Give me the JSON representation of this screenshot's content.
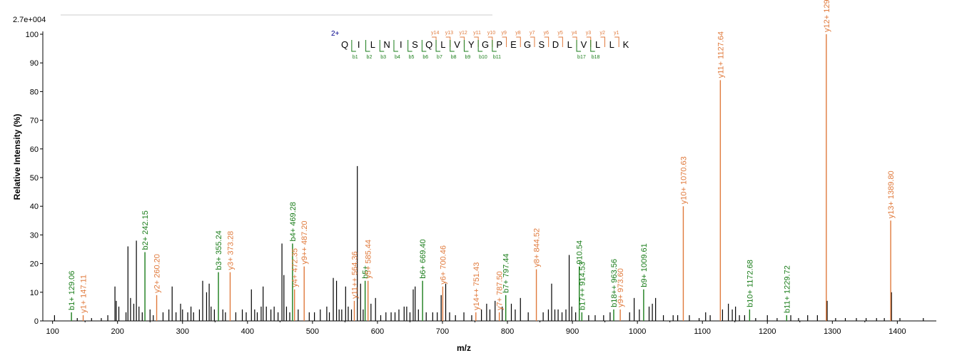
{
  "chart_data": {
    "type": "bar",
    "title": "",
    "scale_label": "2.7e+004",
    "xlabel": "m/z",
    "ylabel": "Relative   Intensity (%)",
    "xlim": [
      85,
      1460
    ],
    "ylim": [
      0,
      100
    ],
    "x_ticks": [
      100,
      200,
      300,
      400,
      500,
      600,
      700,
      800,
      900,
      1000,
      1100,
      1200,
      1300,
      1400
    ],
    "y_ticks": [
      0,
      10,
      20,
      30,
      40,
      50,
      60,
      70,
      80,
      90,
      100
    ],
    "grid": false,
    "colors": {
      "b_ion": "#1a7d1a",
      "y_ion": "#e07a3c",
      "other": "#000000",
      "charge": "#00008b"
    },
    "annotated_peaks": [
      {
        "label": "b1+ 129.06",
        "mz": 129.06,
        "intensity": 3,
        "ion": "b"
      },
      {
        "label": "y1+ 147.11",
        "mz": 147.11,
        "intensity": 2,
        "ion": "y"
      },
      {
        "label": "b2+ 242.15",
        "mz": 242.15,
        "intensity": 24,
        "ion": "b"
      },
      {
        "label": "y2+ 260.20",
        "mz": 260.2,
        "intensity": 9,
        "ion": "y"
      },
      {
        "label": "b3+ 355.24",
        "mz": 355.24,
        "intensity": 17,
        "ion": "b"
      },
      {
        "label": "y3+ 373.28",
        "mz": 373.28,
        "intensity": 17,
        "ion": "y"
      },
      {
        "label": "b4+ 469.28",
        "mz": 469.28,
        "intensity": 27,
        "ion": "b"
      },
      {
        "label": "y4+ 472.35",
        "mz": 472.35,
        "intensity": 11,
        "ion": "y"
      },
      {
        "label": "y9++ 487.20",
        "mz": 487.2,
        "intensity": 19,
        "ion": "y"
      },
      {
        "label": "y11++ 564.36",
        "mz": 564.36,
        "intensity": 7,
        "ion": "y"
      },
      {
        "label": "b5+",
        "mz": 581.0,
        "intensity": 14,
        "ion": "b"
      },
      {
        "label": "y5+ 585.44",
        "mz": 585.44,
        "intensity": 14,
        "ion": "y"
      },
      {
        "label": "b6+ 669.40",
        "mz": 669.4,
        "intensity": 14,
        "ion": "b"
      },
      {
        "label": "y6+ 700.46",
        "mz": 700.46,
        "intensity": 12,
        "ion": "y"
      },
      {
        "label": "y14++ 751.43",
        "mz": 751.43,
        "intensity": 3,
        "ion": "y"
      },
      {
        "label": "y7+ 787.50",
        "mz": 787.5,
        "intensity": 3,
        "ion": "y"
      },
      {
        "label": "b7+ 797.44",
        "mz": 797.44,
        "intensity": 9,
        "ion": "b"
      },
      {
        "label": "y8+ 844.52",
        "mz": 844.52,
        "intensity": 18,
        "ion": "y"
      },
      {
        "label": "b17++ 914.53",
        "mz": 914.53,
        "intensity": 3,
        "ion": "b"
      },
      {
        "label": "910.54",
        "mz": 910.54,
        "intensity": 19,
        "ion": "b"
      },
      {
        "label": "b18++ 963.56",
        "mz": 963.56,
        "intensity": 4,
        "ion": "b"
      },
      {
        "label": "y9+ 973.60",
        "mz": 973.6,
        "intensity": 4,
        "ion": "y"
      },
      {
        "label": "b9+ 1009.61",
        "mz": 1009.61,
        "intensity": 11,
        "ion": "b"
      },
      {
        "label": "y10+ 1070.63",
        "mz": 1070.63,
        "intensity": 40,
        "ion": "y"
      },
      {
        "label": "y11+ 1127.64",
        "mz": 1127.64,
        "intensity": 84,
        "ion": "y"
      },
      {
        "label": "b10+ 1172.68",
        "mz": 1172.68,
        "intensity": 4,
        "ion": "b"
      },
      {
        "label": "b11+ 1229.72",
        "mz": 1229.72,
        "intensity": 2,
        "ion": "b"
      },
      {
        "label": "y12+ 1290.70",
        "mz": 1290.7,
        "intensity": 100,
        "ion": "y"
      },
      {
        "label": "y13+ 1389.80",
        "mz": 1389.8,
        "intensity": 35,
        "ion": "y"
      }
    ],
    "other_peaks": [
      {
        "mz": 103,
        "intensity": 2
      },
      {
        "mz": 138,
        "intensity": 1
      },
      {
        "mz": 160,
        "intensity": 1
      },
      {
        "mz": 175,
        "intensity": 1
      },
      {
        "mz": 185,
        "intensity": 2
      },
      {
        "mz": 196,
        "intensity": 12
      },
      {
        "mz": 198,
        "intensity": 7
      },
      {
        "mz": 202,
        "intensity": 5
      },
      {
        "mz": 213,
        "intensity": 3
      },
      {
        "mz": 216,
        "intensity": 26
      },
      {
        "mz": 220,
        "intensity": 8
      },
      {
        "mz": 225,
        "intensity": 6
      },
      {
        "mz": 229,
        "intensity": 28
      },
      {
        "mz": 233,
        "intensity": 5
      },
      {
        "mz": 238,
        "intensity": 3
      },
      {
        "mz": 250,
        "intensity": 4
      },
      {
        "mz": 255,
        "intensity": 2
      },
      {
        "mz": 270,
        "intensity": 3
      },
      {
        "mz": 279,
        "intensity": 4
      },
      {
        "mz": 284,
        "intensity": 12
      },
      {
        "mz": 290,
        "intensity": 3
      },
      {
        "mz": 297,
        "intensity": 6
      },
      {
        "mz": 300,
        "intensity": 4
      },
      {
        "mz": 308,
        "intensity": 3
      },
      {
        "mz": 313,
        "intensity": 5
      },
      {
        "mz": 317,
        "intensity": 3
      },
      {
        "mz": 326,
        "intensity": 4
      },
      {
        "mz": 331,
        "intensity": 14
      },
      {
        "mz": 337,
        "intensity": 10
      },
      {
        "mz": 341,
        "intensity": 13
      },
      {
        "mz": 344,
        "intensity": 5
      },
      {
        "mz": 349,
        "intensity": 4
      },
      {
        "mz": 362,
        "intensity": 4
      },
      {
        "mz": 366,
        "intensity": 3
      },
      {
        "mz": 382,
        "intensity": 3
      },
      {
        "mz": 392,
        "intensity": 4
      },
      {
        "mz": 398,
        "intensity": 3
      },
      {
        "mz": 406,
        "intensity": 11
      },
      {
        "mz": 411,
        "intensity": 4
      },
      {
        "mz": 415,
        "intensity": 3
      },
      {
        "mz": 421,
        "intensity": 5
      },
      {
        "mz": 424,
        "intensity": 12
      },
      {
        "mz": 429,
        "intensity": 5
      },
      {
        "mz": 436,
        "intensity": 4
      },
      {
        "mz": 441,
        "intensity": 5
      },
      {
        "mz": 447,
        "intensity": 3
      },
      {
        "mz": 453,
        "intensity": 27
      },
      {
        "mz": 456,
        "intensity": 16
      },
      {
        "mz": 460,
        "intensity": 5
      },
      {
        "mz": 465,
        "intensity": 3
      },
      {
        "mz": 478,
        "intensity": 4
      },
      {
        "mz": 495,
        "intensity": 3
      },
      {
        "mz": 503,
        "intensity": 3
      },
      {
        "mz": 512,
        "intensity": 4
      },
      {
        "mz": 522,
        "intensity": 5
      },
      {
        "mz": 526,
        "intensity": 3
      },
      {
        "mz": 532,
        "intensity": 15
      },
      {
        "mz": 537,
        "intensity": 14
      },
      {
        "mz": 541,
        "intensity": 4
      },
      {
        "mz": 545,
        "intensity": 4
      },
      {
        "mz": 551,
        "intensity": 12
      },
      {
        "mz": 555,
        "intensity": 5
      },
      {
        "mz": 560,
        "intensity": 4
      },
      {
        "mz": 569,
        "intensity": 54
      },
      {
        "mz": 574,
        "intensity": 13
      },
      {
        "mz": 578,
        "intensity": 4
      },
      {
        "mz": 590,
        "intensity": 6
      },
      {
        "mz": 597,
        "intensity": 8
      },
      {
        "mz": 605,
        "intensity": 2
      },
      {
        "mz": 613,
        "intensity": 3
      },
      {
        "mz": 621,
        "intensity": 3
      },
      {
        "mz": 627,
        "intensity": 3
      },
      {
        "mz": 633,
        "intensity": 4
      },
      {
        "mz": 641,
        "intensity": 5
      },
      {
        "mz": 645,
        "intensity": 5
      },
      {
        "mz": 650,
        "intensity": 3
      },
      {
        "mz": 655,
        "intensity": 11
      },
      {
        "mz": 658,
        "intensity": 12
      },
      {
        "mz": 663,
        "intensity": 4
      },
      {
        "mz": 675,
        "intensity": 3
      },
      {
        "mz": 685,
        "intensity": 3
      },
      {
        "mz": 692,
        "intensity": 3
      },
      {
        "mz": 698,
        "intensity": 9
      },
      {
        "mz": 705,
        "intensity": 13
      },
      {
        "mz": 711,
        "intensity": 3
      },
      {
        "mz": 720,
        "intensity": 2
      },
      {
        "mz": 733,
        "intensity": 3
      },
      {
        "mz": 745,
        "intensity": 2
      },
      {
        "mz": 760,
        "intensity": 4
      },
      {
        "mz": 768,
        "intensity": 6
      },
      {
        "mz": 773,
        "intensity": 4
      },
      {
        "mz": 781,
        "intensity": 7
      },
      {
        "mz": 792,
        "intensity": 5
      },
      {
        "mz": 806,
        "intensity": 6
      },
      {
        "mz": 812,
        "intensity": 4
      },
      {
        "mz": 820,
        "intensity": 8
      },
      {
        "mz": 832,
        "intensity": 3
      },
      {
        "mz": 855,
        "intensity": 3
      },
      {
        "mz": 863,
        "intensity": 4
      },
      {
        "mz": 868,
        "intensity": 13
      },
      {
        "mz": 873,
        "intensity": 4
      },
      {
        "mz": 878,
        "intensity": 4
      },
      {
        "mz": 884,
        "intensity": 3
      },
      {
        "mz": 890,
        "intensity": 4
      },
      {
        "mz": 895,
        "intensity": 23
      },
      {
        "mz": 899,
        "intensity": 5
      },
      {
        "mz": 905,
        "intensity": 3
      },
      {
        "mz": 925,
        "intensity": 2
      },
      {
        "mz": 935,
        "intensity": 2
      },
      {
        "mz": 948,
        "intensity": 2
      },
      {
        "mz": 958,
        "intensity": 3
      },
      {
        "mz": 988,
        "intensity": 3
      },
      {
        "mz": 995,
        "intensity": 8
      },
      {
        "mz": 1003,
        "intensity": 4
      },
      {
        "mz": 1018,
        "intensity": 5
      },
      {
        "mz": 1023,
        "intensity": 6
      },
      {
        "mz": 1028,
        "intensity": 8
      },
      {
        "mz": 1040,
        "intensity": 2
      },
      {
        "mz": 1055,
        "intensity": 2
      },
      {
        "mz": 1062,
        "intensity": 2
      },
      {
        "mz": 1080,
        "intensity": 2
      },
      {
        "mz": 1095,
        "intensity": 1
      },
      {
        "mz": 1105,
        "intensity": 3
      },
      {
        "mz": 1112,
        "intensity": 2
      },
      {
        "mz": 1131,
        "intensity": 4
      },
      {
        "mz": 1140,
        "intensity": 6
      },
      {
        "mz": 1146,
        "intensity": 4
      },
      {
        "mz": 1151,
        "intensity": 5
      },
      {
        "mz": 1157,
        "intensity": 2
      },
      {
        "mz": 1165,
        "intensity": 2
      },
      {
        "mz": 1182,
        "intensity": 1
      },
      {
        "mz": 1200,
        "intensity": 2
      },
      {
        "mz": 1215,
        "intensity": 1
      },
      {
        "mz": 1236,
        "intensity": 2
      },
      {
        "mz": 1248,
        "intensity": 1
      },
      {
        "mz": 1262,
        "intensity": 2
      },
      {
        "mz": 1277,
        "intensity": 2
      },
      {
        "mz": 1292,
        "intensity": 7
      },
      {
        "mz": 1305,
        "intensity": 1
      },
      {
        "mz": 1320,
        "intensity": 1
      },
      {
        "mz": 1337,
        "intensity": 1
      },
      {
        "mz": 1352,
        "intensity": 1
      },
      {
        "mz": 1368,
        "intensity": 1
      },
      {
        "mz": 1380,
        "intensity": 1
      },
      {
        "mz": 1391,
        "intensity": 10
      },
      {
        "mz": 1404,
        "intensity": 1
      },
      {
        "mz": 1440,
        "intensity": 1
      }
    ],
    "sequence": {
      "charge": "2+",
      "residues": [
        "Q",
        "I",
        "L",
        "N",
        "I",
        "S",
        "Q",
        "L",
        "V",
        "Y",
        "G",
        "P",
        "E",
        "G",
        "S",
        "D",
        "L",
        "V",
        "L",
        "L",
        "K"
      ],
      "y_ions": [
        {
          "label": "y14",
          "after": 7
        },
        {
          "label": "y13",
          "after": 8
        },
        {
          "label": "y12",
          "after": 9
        },
        {
          "label": "y11",
          "after": 10
        },
        {
          "label": "y10",
          "after": 11
        },
        {
          "label": "y9",
          "after": 12
        },
        {
          "label": "y8",
          "after": 13
        },
        {
          "label": "y7",
          "after": 14
        },
        {
          "label": "y6",
          "after": 15
        },
        {
          "label": "y5",
          "after": 16
        },
        {
          "label": "y4",
          "after": 17
        },
        {
          "label": "y3",
          "after": 18
        },
        {
          "label": "y2",
          "after": 19
        },
        {
          "label": "y1",
          "after": 20
        }
      ],
      "b_ions": [
        {
          "label": "b1",
          "after": 1
        },
        {
          "label": "b2",
          "after": 2
        },
        {
          "label": "b3",
          "after": 3
        },
        {
          "label": "b4",
          "after": 4
        },
        {
          "label": "b5",
          "after": 5
        },
        {
          "label": "b6",
          "after": 6
        },
        {
          "label": "b7",
          "after": 7
        },
        {
          "label": "b8",
          "after": 8
        },
        {
          "label": "b9",
          "after": 9
        },
        {
          "label": "b10",
          "after": 10
        },
        {
          "label": "b11",
          "after": 11
        },
        {
          "label": "b17",
          "after": 17
        },
        {
          "label": "b18",
          "after": 18
        }
      ]
    }
  }
}
